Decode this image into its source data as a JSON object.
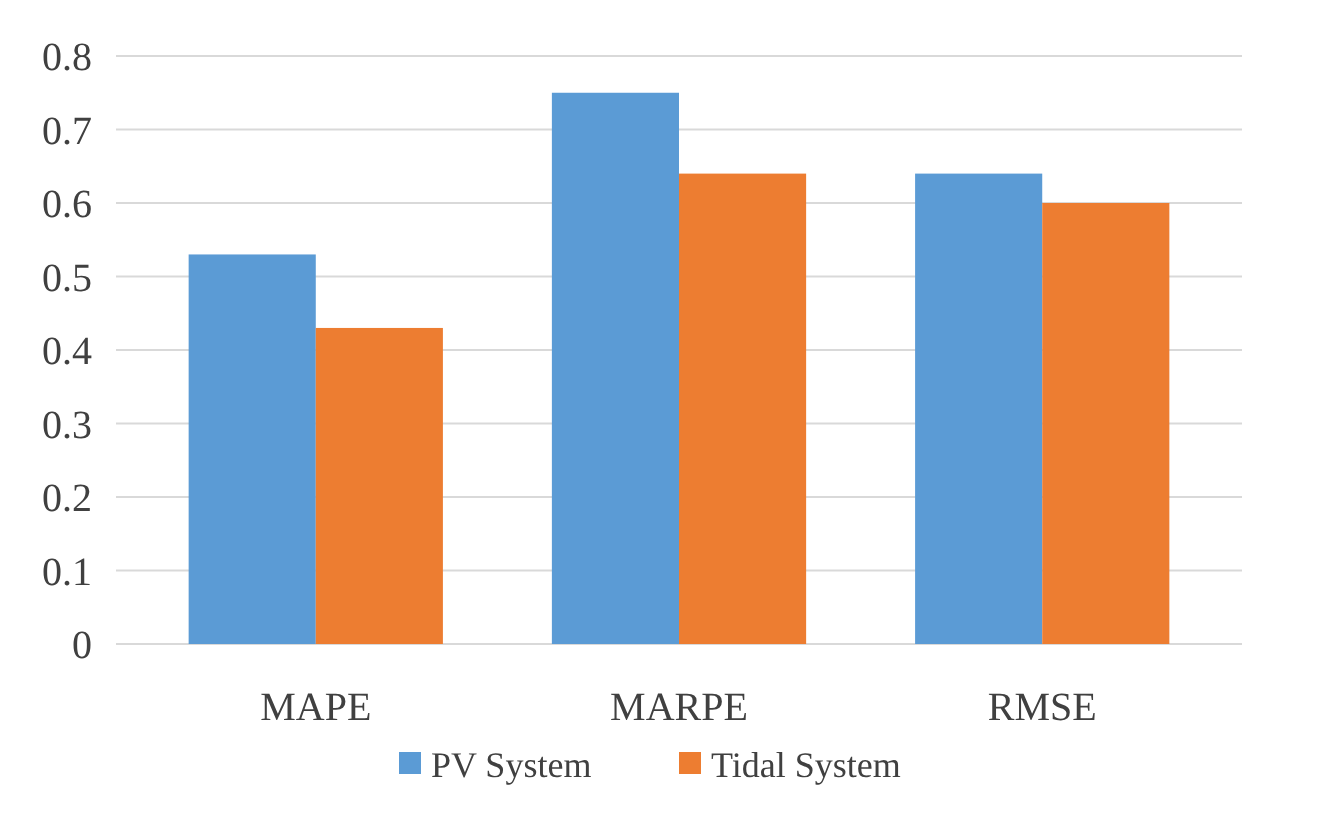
{
  "chart_data": {
    "type": "bar",
    "categories": [
      "MAPE",
      "MARPE",
      "RMSE"
    ],
    "series": [
      {
        "name": "PV System",
        "color": "#5b9bd5",
        "values": [
          0.53,
          0.75,
          0.64
        ]
      },
      {
        "name": "Tidal System",
        "color": "#ed7d31",
        "values": [
          0.43,
          0.64,
          0.6
        ]
      }
    ],
    "ylim": [
      0,
      0.8
    ],
    "yticks": [
      0,
      0.1,
      0.2,
      0.3,
      0.4,
      0.5,
      0.6,
      0.7,
      0.8
    ],
    "grid": true,
    "legend": "bottom"
  }
}
